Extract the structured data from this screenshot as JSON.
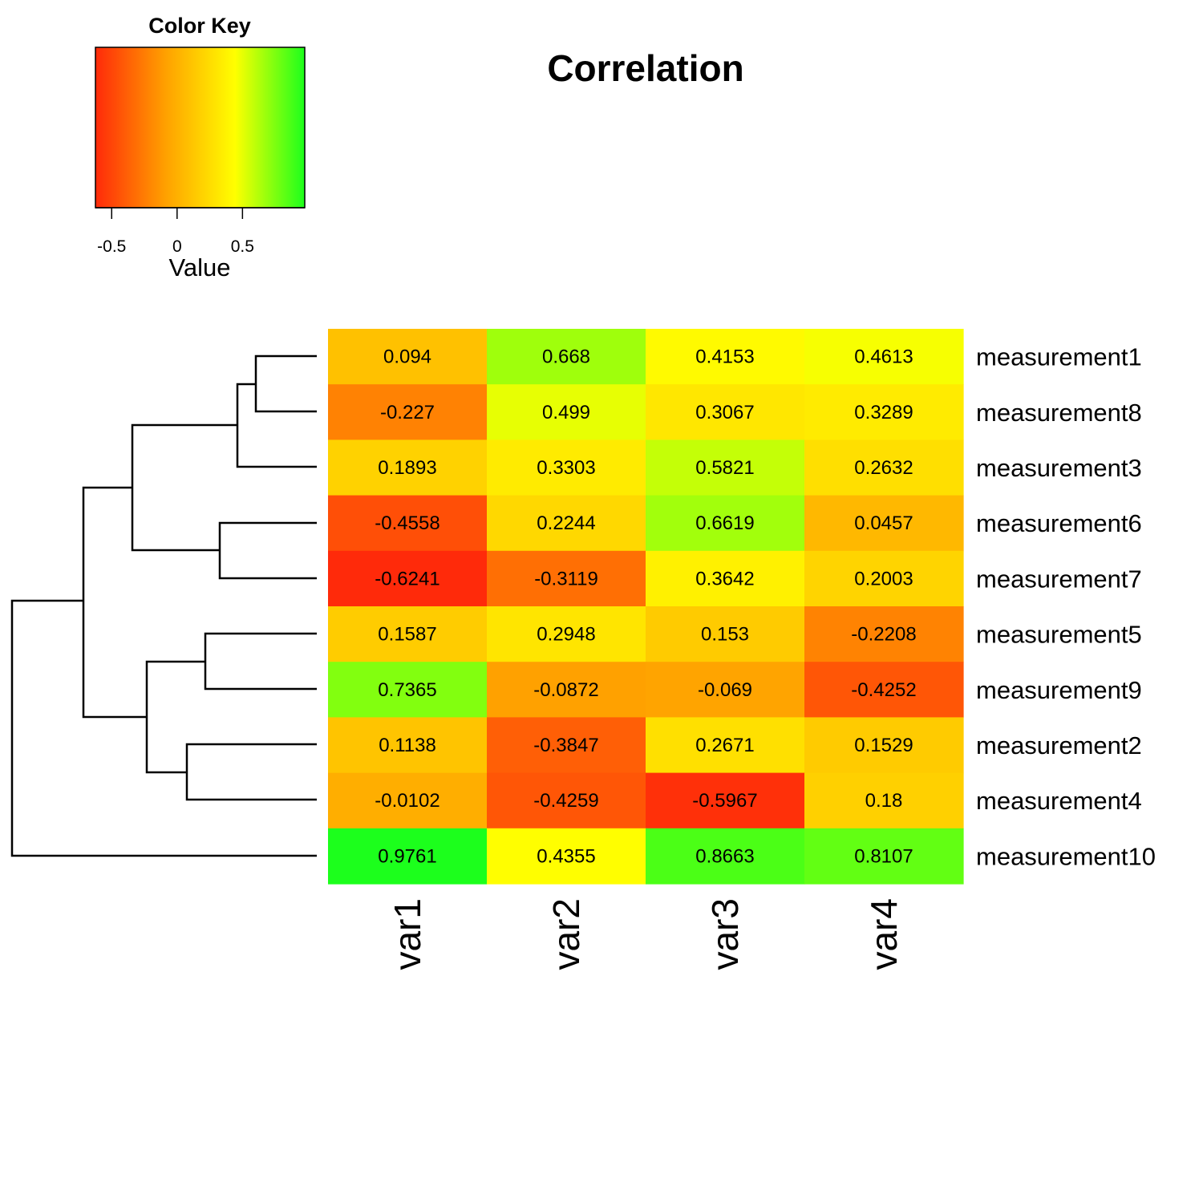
{
  "chart_data": {
    "type": "heatmap",
    "title": "Correlation",
    "columns": [
      "var1",
      "var2",
      "var3",
      "var4"
    ],
    "rows": [
      "measurement1",
      "measurement8",
      "measurement3",
      "measurement6",
      "measurement7",
      "measurement5",
      "measurement9",
      "measurement2",
      "measurement4",
      "measurement10"
    ],
    "values": [
      [
        0.094,
        0.668,
        0.4153,
        0.4613
      ],
      [
        -0.227,
        0.499,
        0.3067,
        0.3289
      ],
      [
        0.1893,
        0.3303,
        0.5821,
        0.2632
      ],
      [
        -0.4558,
        0.2244,
        0.6619,
        0.0457
      ],
      [
        -0.6241,
        -0.3119,
        0.3642,
        0.2003
      ],
      [
        0.1587,
        0.2948,
        0.153,
        -0.2208
      ],
      [
        0.7365,
        -0.0872,
        -0.069,
        -0.4252
      ],
      [
        0.1138,
        -0.3847,
        0.2671,
        0.1529
      ],
      [
        -0.0102,
        -0.4259,
        -0.5967,
        0.18
      ],
      [
        0.9761,
        0.4355,
        0.8663,
        0.8107
      ]
    ],
    "value_labels": [
      [
        "0.094",
        "0.668",
        "0.4153",
        "0.4613"
      ],
      [
        "-0.227",
        "0.499",
        "0.3067",
        "0.3289"
      ],
      [
        "0.1893",
        "0.3303",
        "0.5821",
        "0.2632"
      ],
      [
        "-0.4558",
        "0.2244",
        "0.6619",
        "0.0457"
      ],
      [
        "-0.6241",
        "-0.3119",
        "0.3642",
        "0.2003"
      ],
      [
        "0.1587",
        "0.2948",
        "0.153",
        "-0.2208"
      ],
      [
        "0.7365",
        "-0.0872",
        "-0.069",
        "-0.4252"
      ],
      [
        "0.1138",
        "-0.3847",
        "0.2671",
        "0.1529"
      ],
      [
        "-0.0102",
        "-0.4259",
        "-0.5967",
        "0.18"
      ],
      [
        "0.9761",
        "0.4355",
        "0.8663",
        "0.8107"
      ]
    ],
    "color_key": {
      "title": "Color Key",
      "xlabel": "Value",
      "range": [
        -0.6241,
        0.9761
      ],
      "ticks": [
        -0.5,
        0,
        0.5
      ],
      "tick_labels": [
        "-0.5",
        "0",
        "0.5"
      ],
      "colors": [
        "#ff2a0a",
        "#ffa000",
        "#ffff00",
        "#1cff1c"
      ]
    },
    "row_dendrogram_merge_heights": [
      0.12,
      0.22,
      0.3,
      0.27,
      0.26,
      0.34,
      0.42,
      0.53,
      0.63
    ]
  }
}
